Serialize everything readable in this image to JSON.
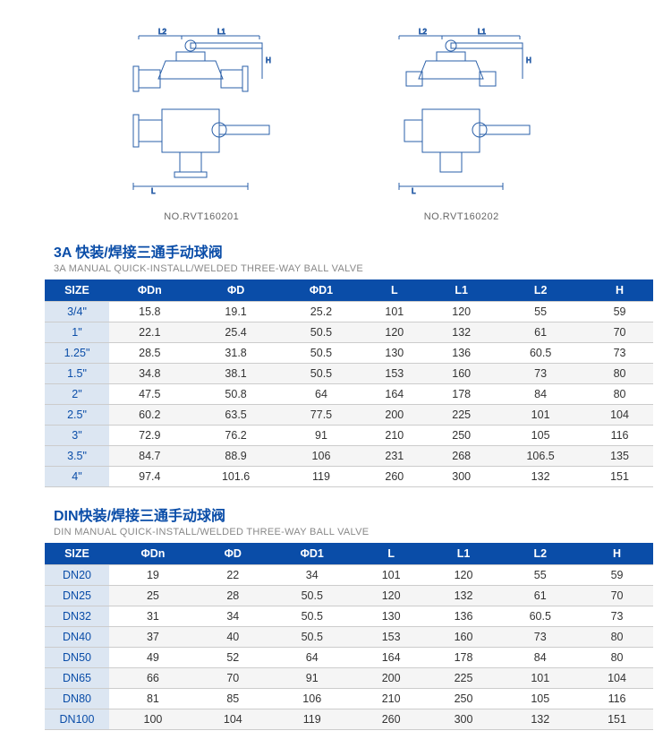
{
  "diagrams": {
    "left_label": "NO.RVT160201",
    "right_label": "NO.RVT160202",
    "dim_labels": [
      "L2",
      "L1",
      "H",
      "L"
    ],
    "stroke_color": "#2a5fa8"
  },
  "section_3a": {
    "title_cn": "3A 快装/焊接三通手动球阀",
    "title_en": "3A MANUAL QUICK-INSTALL/WELDED THREE-WAY BALL VALVE",
    "columns": [
      "SIZE",
      "ΦDn",
      "ΦD",
      "ΦD1",
      "L",
      "L1",
      "L2",
      "H"
    ],
    "rows": [
      [
        "3/4\"",
        "15.8",
        "19.1",
        "25.2",
        "101",
        "120",
        "55",
        "59"
      ],
      [
        "1\"",
        "22.1",
        "25.4",
        "50.5",
        "120",
        "132",
        "61",
        "70"
      ],
      [
        "1.25\"",
        "28.5",
        "31.8",
        "50.5",
        "130",
        "136",
        "60.5",
        "73"
      ],
      [
        "1.5\"",
        "34.8",
        "38.1",
        "50.5",
        "153",
        "160",
        "73",
        "80"
      ],
      [
        "2\"",
        "47.5",
        "50.8",
        "64",
        "164",
        "178",
        "84",
        "80"
      ],
      [
        "2.5\"",
        "60.2",
        "63.5",
        "77.5",
        "200",
        "225",
        "101",
        "104"
      ],
      [
        "3\"",
        "72.9",
        "76.2",
        "91",
        "210",
        "250",
        "105",
        "116"
      ],
      [
        "3.5\"",
        "84.7",
        "88.9",
        "106",
        "231",
        "268",
        "106.5",
        "135"
      ],
      [
        "4\"",
        "97.4",
        "101.6",
        "119",
        "260",
        "300",
        "132",
        "151"
      ]
    ]
  },
  "section_din": {
    "title_cn": "DIN快装/焊接三通手动球阀",
    "title_en": "DIN MANUAL QUICK-INSTALL/WELDED THREE-WAY BALL VALVE",
    "columns": [
      "SIZE",
      "ΦDn",
      "ΦD",
      "ΦD1",
      "L",
      "L1",
      "L2",
      "H"
    ],
    "rows": [
      [
        "DN20",
        "19",
        "22",
        "34",
        "101",
        "120",
        "55",
        "59"
      ],
      [
        "DN25",
        "25",
        "28",
        "50.5",
        "120",
        "132",
        "61",
        "70"
      ],
      [
        "DN32",
        "31",
        "34",
        "50.5",
        "130",
        "136",
        "60.5",
        "73"
      ],
      [
        "DN40",
        "37",
        "40",
        "50.5",
        "153",
        "160",
        "73",
        "80"
      ],
      [
        "DN50",
        "49",
        "52",
        "64",
        "164",
        "178",
        "84",
        "80"
      ],
      [
        "DN65",
        "66",
        "70",
        "91",
        "200",
        "225",
        "101",
        "104"
      ],
      [
        "DN80",
        "81",
        "85",
        "106",
        "210",
        "250",
        "105",
        "116"
      ],
      [
        "DN100",
        "100",
        "104",
        "119",
        "260",
        "300",
        "132",
        "151"
      ]
    ]
  }
}
